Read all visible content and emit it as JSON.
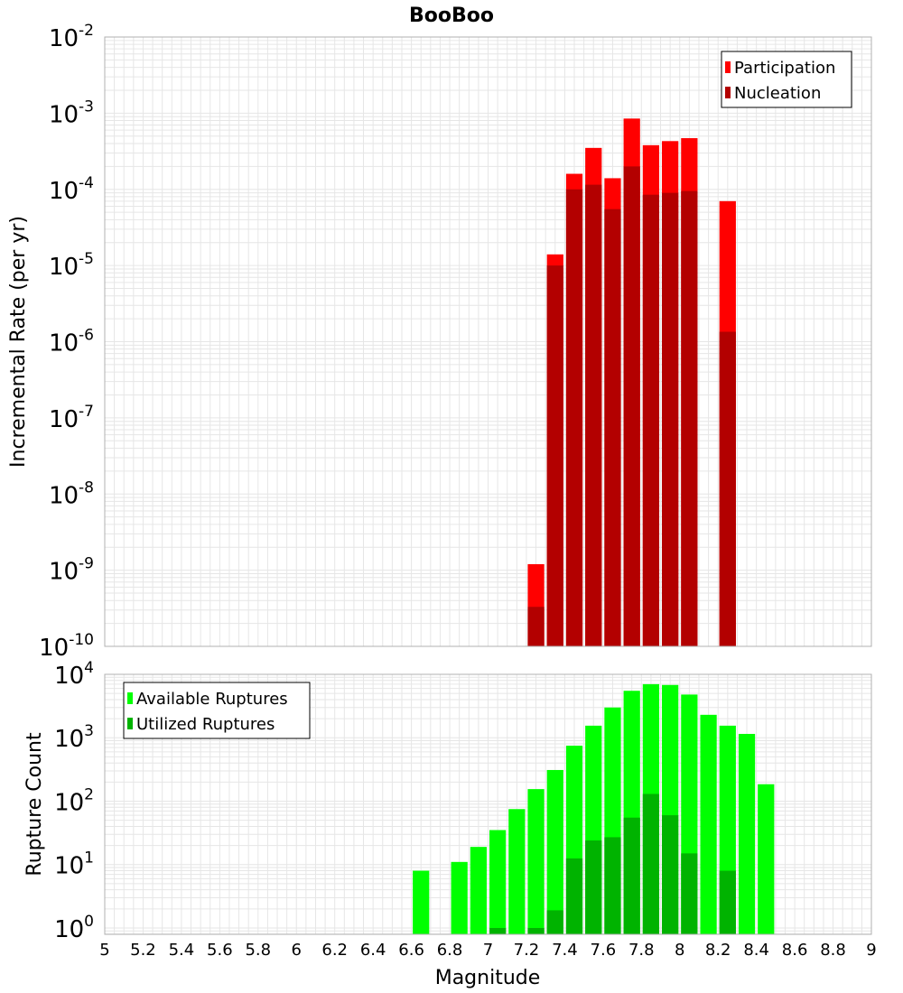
{
  "title": "BooBoo",
  "xlabel": "Magnitude",
  "x_ticks": [
    "5",
    "5.2",
    "5.4",
    "5.6",
    "5.8",
    "6",
    "6.2",
    "6.4",
    "6.6",
    "6.8",
    "7",
    "7.2",
    "7.4",
    "7.6",
    "7.8",
    "8",
    "8.2",
    "8.4",
    "8.6",
    "8.8",
    "9"
  ],
  "colors": {
    "participation": "#ff0000",
    "nucleation": "#b30000",
    "available": "#00ff00",
    "utilized": "#00b300",
    "grid": "#e6e6e6",
    "frame": "#b0b0b0"
  },
  "chart_data": [
    {
      "type": "bar",
      "scale": "log",
      "ylabel": "Incremental Rate (per yr)",
      "xlim": [
        5,
        9
      ],
      "ylim_exp": [
        -10,
        -2
      ],
      "bar_width": 0.1,
      "legend_position": "top-right",
      "x": [
        7.25,
        7.35,
        7.45,
        7.55,
        7.65,
        7.75,
        7.85,
        7.95,
        8.05,
        8.25
      ],
      "series": [
        {
          "name": "Participation",
          "values": [
            1.2e-09,
            1.4e-05,
            0.00016,
            0.00035,
            0.00014,
            0.00085,
            0.00038,
            0.00043,
            0.00047,
            7e-05
          ]
        },
        {
          "name": "Nucleation",
          "values": [
            3.3e-10,
            1e-05,
            0.0001,
            0.000115,
            5.5e-05,
            0.0002,
            8.5e-05,
            9e-05,
            9.5e-05,
            1.35e-06
          ]
        }
      ],
      "y_tick_exponents": [
        "-2",
        "-3",
        "-4",
        "-5",
        "-6",
        "-7",
        "-8",
        "-9",
        "-10"
      ]
    },
    {
      "type": "bar",
      "scale": "log",
      "ylabel": "Rupture Count",
      "xlim": [
        5,
        9
      ],
      "ylim_exp": [
        -0.1,
        4
      ],
      "bar_width": 0.1,
      "legend_position": "top-left",
      "x": [
        6.65,
        6.85,
        6.95,
        7.05,
        7.15,
        7.25,
        7.35,
        7.45,
        7.55,
        7.65,
        7.75,
        7.85,
        7.95,
        8.05,
        8.15,
        8.25,
        8.35,
        8.45
      ],
      "series": [
        {
          "name": "Available Ruptures",
          "values": [
            8,
            11,
            19,
            35,
            75,
            155,
            310,
            750,
            1550,
            3000,
            5500,
            7000,
            6800,
            4800,
            2300,
            1550,
            1150,
            185
          ]
        },
        {
          "name": "Utilized Ruptures",
          "values": [
            0,
            0,
            0,
            1,
            0,
            1,
            1.9,
            12.5,
            24,
            27,
            55,
            130,
            60,
            15,
            0,
            8,
            0,
            0
          ]
        }
      ],
      "y_tick_exponents": [
        "0",
        "1",
        "2",
        "3",
        "4"
      ]
    }
  ]
}
